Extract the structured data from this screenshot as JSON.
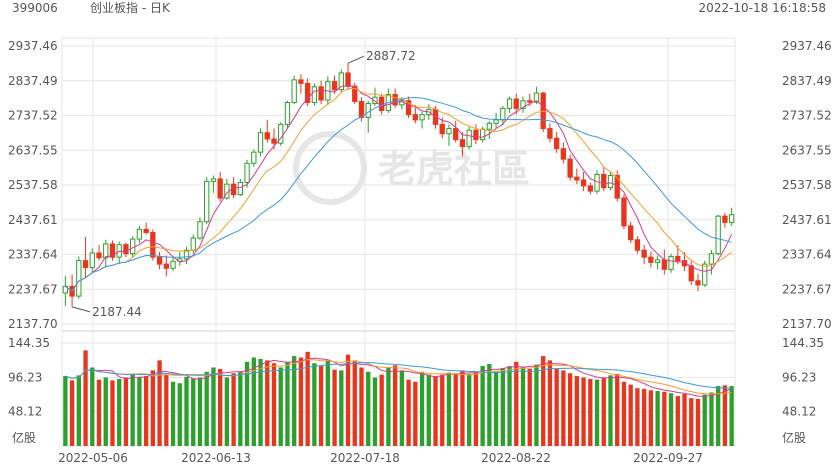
{
  "header": {
    "code": "399006",
    "name": "创业板指 - 日K",
    "datetime": "2022-10-18 16:18:58"
  },
  "watermark": "老虎社區",
  "colors": {
    "up": "#2ca02c",
    "down": "#e8361e",
    "ma_short": "#d63b8f",
    "ma_mid": "#f0a030",
    "ma_long": "#3a9ad9",
    "grid": "#e6e6e6",
    "text": "#555555"
  },
  "chart_data": {
    "type": "candlestick",
    "price_axis": {
      "ticks": [
        "2937.46",
        "2837.49",
        "2737.52",
        "2637.55",
        "2537.58",
        "2437.61",
        "2337.64",
        "2237.67",
        "2137.70"
      ],
      "range": [
        2137.7,
        2937.46
      ]
    },
    "volume_axis": {
      "ticks": [
        "144.35",
        "96.23",
        "48.12"
      ],
      "unit": "亿股",
      "range": [
        0,
        144.35
      ]
    },
    "x_ticks": [
      "2022-05-06",
      "2022-06-13",
      "2022-07-18",
      "2022-08-22",
      "2022-09-27"
    ],
    "annotations": {
      "high_label": "2887.72",
      "low_label": "2187.44"
    },
    "candles": [
      {
        "o": 2227,
        "h": 2275,
        "l": 2190,
        "c": 2246,
        "v": 98
      },
      {
        "o": 2246,
        "h": 2280,
        "l": 2187,
        "c": 2218,
        "v": 92
      },
      {
        "o": 2218,
        "h": 2332,
        "l": 2210,
        "c": 2320,
        "v": 99
      },
      {
        "o": 2320,
        "h": 2388,
        "l": 2270,
        "c": 2300,
        "v": 134
      },
      {
        "o": 2300,
        "h": 2355,
        "l": 2285,
        "c": 2342,
        "v": 110
      },
      {
        "o": 2342,
        "h": 2365,
        "l": 2320,
        "c": 2328,
        "v": 93
      },
      {
        "o": 2328,
        "h": 2380,
        "l": 2300,
        "c": 2368,
        "v": 96
      },
      {
        "o": 2368,
        "h": 2378,
        "l": 2320,
        "c": 2330,
        "v": 92
      },
      {
        "o": 2330,
        "h": 2375,
        "l": 2310,
        "c": 2366,
        "v": 94
      },
      {
        "o": 2366,
        "h": 2372,
        "l": 2330,
        "c": 2340,
        "v": 96
      },
      {
        "o": 2340,
        "h": 2390,
        "l": 2330,
        "c": 2382,
        "v": 101
      },
      {
        "o": 2382,
        "h": 2420,
        "l": 2370,
        "c": 2410,
        "v": 97
      },
      {
        "o": 2410,
        "h": 2430,
        "l": 2395,
        "c": 2401,
        "v": 98
      },
      {
        "o": 2401,
        "h": 2410,
        "l": 2320,
        "c": 2330,
        "v": 106
      },
      {
        "o": 2330,
        "h": 2345,
        "l": 2295,
        "c": 2310,
        "v": 120
      },
      {
        "o": 2310,
        "h": 2335,
        "l": 2275,
        "c": 2298,
        "v": 100
      },
      {
        "o": 2298,
        "h": 2330,
        "l": 2290,
        "c": 2318,
        "v": 90
      },
      {
        "o": 2318,
        "h": 2345,
        "l": 2305,
        "c": 2325,
        "v": 88
      },
      {
        "o": 2325,
        "h": 2360,
        "l": 2310,
        "c": 2350,
        "v": 97
      },
      {
        "o": 2350,
        "h": 2395,
        "l": 2340,
        "c": 2385,
        "v": 95
      },
      {
        "o": 2385,
        "h": 2445,
        "l": 2380,
        "c": 2432,
        "v": 96
      },
      {
        "o": 2432,
        "h": 2560,
        "l": 2425,
        "c": 2548,
        "v": 104
      },
      {
        "o": 2548,
        "h": 2565,
        "l": 2515,
        "c": 2555,
        "v": 110
      },
      {
        "o": 2555,
        "h": 2575,
        "l": 2490,
        "c": 2500,
        "v": 108
      },
      {
        "o": 2500,
        "h": 2555,
        "l": 2495,
        "c": 2540,
        "v": 96
      },
      {
        "o": 2540,
        "h": 2560,
        "l": 2500,
        "c": 2510,
        "v": 102
      },
      {
        "o": 2510,
        "h": 2555,
        "l": 2505,
        "c": 2545,
        "v": 104
      },
      {
        "o": 2545,
        "h": 2610,
        "l": 2530,
        "c": 2600,
        "v": 118
      },
      {
        "o": 2600,
        "h": 2640,
        "l": 2590,
        "c": 2632,
        "v": 124
      },
      {
        "o": 2632,
        "h": 2700,
        "l": 2620,
        "c": 2688,
        "v": 122
      },
      {
        "o": 2688,
        "h": 2725,
        "l": 2660,
        "c": 2670,
        "v": 120
      },
      {
        "o": 2670,
        "h": 2700,
        "l": 2640,
        "c": 2658,
        "v": 116
      },
      {
        "o": 2658,
        "h": 2718,
        "l": 2650,
        "c": 2712,
        "v": 110
      },
      {
        "o": 2712,
        "h": 2780,
        "l": 2700,
        "c": 2775,
        "v": 118
      },
      {
        "o": 2775,
        "h": 2852,
        "l": 2770,
        "c": 2840,
        "v": 126
      },
      {
        "o": 2840,
        "h": 2856,
        "l": 2800,
        "c": 2830,
        "v": 124
      },
      {
        "o": 2830,
        "h": 2845,
        "l": 2765,
        "c": 2775,
        "v": 132
      },
      {
        "o": 2775,
        "h": 2830,
        "l": 2765,
        "c": 2820,
        "v": 116
      },
      {
        "o": 2820,
        "h": 2838,
        "l": 2770,
        "c": 2782,
        "v": 112
      },
      {
        "o": 2782,
        "h": 2850,
        "l": 2770,
        "c": 2835,
        "v": 120
      },
      {
        "o": 2835,
        "h": 2852,
        "l": 2800,
        "c": 2812,
        "v": 107
      },
      {
        "o": 2812,
        "h": 2870,
        "l": 2805,
        "c": 2860,
        "v": 106
      },
      {
        "o": 2860,
        "h": 2888,
        "l": 2810,
        "c": 2822,
        "v": 128
      },
      {
        "o": 2822,
        "h": 2832,
        "l": 2770,
        "c": 2778,
        "v": 120
      },
      {
        "o": 2778,
        "h": 2790,
        "l": 2720,
        "c": 2732,
        "v": 110
      },
      {
        "o": 2732,
        "h": 2780,
        "l": 2688,
        "c": 2772,
        "v": 104
      },
      {
        "o": 2772,
        "h": 2818,
        "l": 2765,
        "c": 2790,
        "v": 96
      },
      {
        "o": 2790,
        "h": 2800,
        "l": 2740,
        "c": 2752,
        "v": 100
      },
      {
        "o": 2752,
        "h": 2815,
        "l": 2745,
        "c": 2798,
        "v": 110
      },
      {
        "o": 2798,
        "h": 2815,
        "l": 2760,
        "c": 2768,
        "v": 113
      },
      {
        "o": 2768,
        "h": 2790,
        "l": 2755,
        "c": 2780,
        "v": 106
      },
      {
        "o": 2780,
        "h": 2792,
        "l": 2730,
        "c": 2740,
        "v": 93
      },
      {
        "o": 2740,
        "h": 2768,
        "l": 2715,
        "c": 2725,
        "v": 90
      },
      {
        "o": 2725,
        "h": 2748,
        "l": 2700,
        "c": 2740,
        "v": 104
      },
      {
        "o": 2740,
        "h": 2770,
        "l": 2725,
        "c": 2755,
        "v": 100
      },
      {
        "o": 2755,
        "h": 2765,
        "l": 2700,
        "c": 2712,
        "v": 98
      },
      {
        "o": 2712,
        "h": 2732,
        "l": 2672,
        "c": 2685,
        "v": 100
      },
      {
        "o": 2685,
        "h": 2712,
        "l": 2650,
        "c": 2700,
        "v": 103
      },
      {
        "o": 2700,
        "h": 2722,
        "l": 2660,
        "c": 2668,
        "v": 102
      },
      {
        "o": 2668,
        "h": 2690,
        "l": 2620,
        "c": 2648,
        "v": 106
      },
      {
        "o": 2648,
        "h": 2705,
        "l": 2640,
        "c": 2695,
        "v": 101
      },
      {
        "o": 2695,
        "h": 2712,
        "l": 2655,
        "c": 2668,
        "v": 103
      },
      {
        "o": 2668,
        "h": 2705,
        "l": 2660,
        "c": 2698,
        "v": 112
      },
      {
        "o": 2698,
        "h": 2722,
        "l": 2670,
        "c": 2715,
        "v": 115
      },
      {
        "o": 2715,
        "h": 2745,
        "l": 2700,
        "c": 2725,
        "v": 104
      },
      {
        "o": 2725,
        "h": 2765,
        "l": 2710,
        "c": 2758,
        "v": 109
      },
      {
        "o": 2758,
        "h": 2792,
        "l": 2745,
        "c": 2785,
        "v": 112
      },
      {
        "o": 2785,
        "h": 2800,
        "l": 2740,
        "c": 2758,
        "v": 118
      },
      {
        "o": 2758,
        "h": 2792,
        "l": 2745,
        "c": 2780,
        "v": 110
      },
      {
        "o": 2780,
        "h": 2800,
        "l": 2765,
        "c": 2776,
        "v": 108
      },
      {
        "o": 2776,
        "h": 2820,
        "l": 2770,
        "c": 2802,
        "v": 114
      },
      {
        "o": 2802,
        "h": 2805,
        "l": 2690,
        "c": 2700,
        "v": 126
      },
      {
        "o": 2700,
        "h": 2715,
        "l": 2660,
        "c": 2672,
        "v": 120
      },
      {
        "o": 2672,
        "h": 2690,
        "l": 2630,
        "c": 2642,
        "v": 108
      },
      {
        "o": 2642,
        "h": 2660,
        "l": 2600,
        "c": 2612,
        "v": 106
      },
      {
        "o": 2612,
        "h": 2625,
        "l": 2550,
        "c": 2560,
        "v": 102
      },
      {
        "o": 2560,
        "h": 2585,
        "l": 2540,
        "c": 2552,
        "v": 98
      },
      {
        "o": 2552,
        "h": 2575,
        "l": 2520,
        "c": 2535,
        "v": 96
      },
      {
        "o": 2535,
        "h": 2545,
        "l": 2510,
        "c": 2520,
        "v": 94
      },
      {
        "o": 2520,
        "h": 2580,
        "l": 2512,
        "c": 2568,
        "v": 93
      },
      {
        "o": 2568,
        "h": 2590,
        "l": 2520,
        "c": 2530,
        "v": 96
      },
      {
        "o": 2530,
        "h": 2575,
        "l": 2522,
        "c": 2565,
        "v": 99
      },
      {
        "o": 2565,
        "h": 2580,
        "l": 2490,
        "c": 2500,
        "v": 101
      },
      {
        "o": 2500,
        "h": 2510,
        "l": 2410,
        "c": 2420,
        "v": 90
      },
      {
        "o": 2420,
        "h": 2432,
        "l": 2370,
        "c": 2380,
        "v": 86
      },
      {
        "o": 2380,
        "h": 2390,
        "l": 2340,
        "c": 2350,
        "v": 81
      },
      {
        "o": 2350,
        "h": 2365,
        "l": 2310,
        "c": 2330,
        "v": 80
      },
      {
        "o": 2330,
        "h": 2345,
        "l": 2300,
        "c": 2315,
        "v": 78
      },
      {
        "o": 2315,
        "h": 2335,
        "l": 2295,
        "c": 2322,
        "v": 77
      },
      {
        "o": 2322,
        "h": 2352,
        "l": 2280,
        "c": 2295,
        "v": 76
      },
      {
        "o": 2295,
        "h": 2340,
        "l": 2285,
        "c": 2332,
        "v": 74
      },
      {
        "o": 2332,
        "h": 2365,
        "l": 2310,
        "c": 2320,
        "v": 70
      },
      {
        "o": 2320,
        "h": 2345,
        "l": 2290,
        "c": 2305,
        "v": 73
      },
      {
        "o": 2305,
        "h": 2318,
        "l": 2250,
        "c": 2262,
        "v": 67
      },
      {
        "o": 2262,
        "h": 2282,
        "l": 2232,
        "c": 2250,
        "v": 66
      },
      {
        "o": 2250,
        "h": 2320,
        "l": 2245,
        "c": 2310,
        "v": 72
      },
      {
        "o": 2310,
        "h": 2350,
        "l": 2280,
        "c": 2340,
        "v": 75
      },
      {
        "o": 2340,
        "h": 2452,
        "l": 2335,
        "c": 2448,
        "v": 84
      },
      {
        "o": 2448,
        "h": 2458,
        "l": 2415,
        "c": 2430,
        "v": 85
      },
      {
        "o": 2430,
        "h": 2472,
        "l": 2420,
        "c": 2452,
        "v": 84
      }
    ]
  }
}
